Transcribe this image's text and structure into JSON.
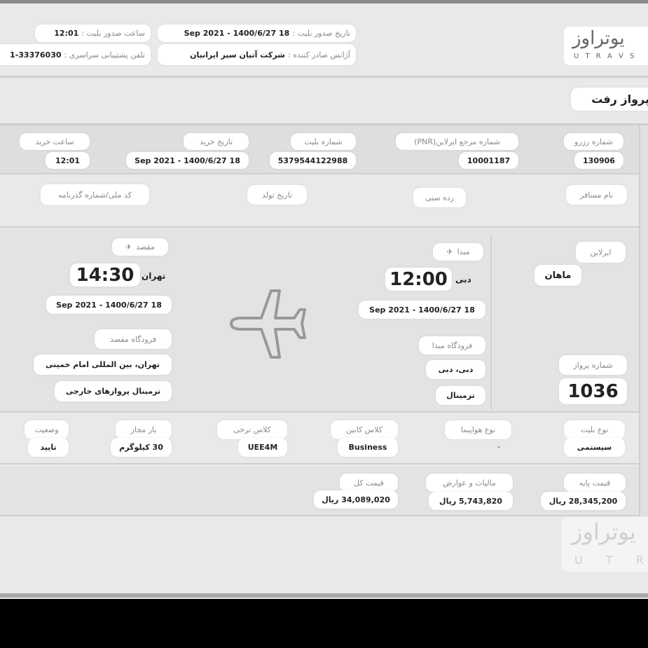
{
  "header": {
    "issue_time_label": "ساعت صدور بلیت :",
    "issue_time": "12:01",
    "support_phone_label": "تلفن پشتیبانی سراسری :",
    "support_phone": "1-33376030",
    "issue_date_label": "تاریخ صدور بلیت :",
    "issue_date": "18 Sep 2021 - 1400/6/27",
    "agency_label": "آژانس صادر کننده :",
    "agency": "شرکت آتیان سیر ایرانیان",
    "logo_fa": "یوتراوز",
    "logo_en": "U T R A V S"
  },
  "section_title": "پرواز رفت",
  "booking": [
    {
      "label": "شماره رزرو",
      "value": "130906"
    },
    {
      "label": "شماره مرجع ایرلاین(PNR)",
      "value": "10001187"
    },
    {
      "label": "شماره بلیت",
      "value": "5379544122988"
    },
    {
      "label": "تاریخ خرید",
      "value": "18 Sep 2021 - 1400/6/27"
    },
    {
      "label": "ساعت خرید",
      "value": "12:01"
    }
  ],
  "passenger": {
    "name_label": "نام مسافر",
    "age_label": "رده سنی",
    "birth_label": "تاریخ تولد",
    "id_label": "کد ملی/شماره گذرنامه"
  },
  "flight": {
    "airline_label": "ایرلاین",
    "airline": "ماهان",
    "flight_no_label": "شماره پرواز",
    "flight_no": "1036",
    "origin": {
      "label": "مبدا",
      "city": "دبی",
      "time": "12:00",
      "date": "18 Sep 2021  -  1400/6/27",
      "airport_label": "فرودگاه مبدا",
      "airport": "دبی، دبی",
      "terminal": "ترمینال"
    },
    "destination": {
      "label": "مقصد",
      "city": "تهران",
      "time": "14:30",
      "date": "18 Sep 2021  -  1400/6/27",
      "airport_label": "فرودگاه مقصد",
      "airport": "تهران، بین المللی امام خمینی",
      "terminal": "ترمینال پروازهای خارجی"
    }
  },
  "details": [
    {
      "label": "نوع بلیت",
      "value": "سیستمی"
    },
    {
      "label": "نوع هواپیما",
      "value": "-"
    },
    {
      "label": "کلاس کابین",
      "value": "Business"
    },
    {
      "label": "کلاس نرخی",
      "value": "UEE4M"
    },
    {
      "label": "بار مجاز",
      "value": "30 کیلوگرم"
    },
    {
      "label": "وضعیت",
      "value": "تایید"
    }
  ],
  "prices": [
    {
      "label": "قیمت پایه",
      "value": "28,345,200 ریال"
    },
    {
      "label": "مالیات و عوارض",
      "value": "5,743,820 ریال"
    },
    {
      "label": "قیمت کل",
      "value": "34,089,020 ریال"
    }
  ]
}
